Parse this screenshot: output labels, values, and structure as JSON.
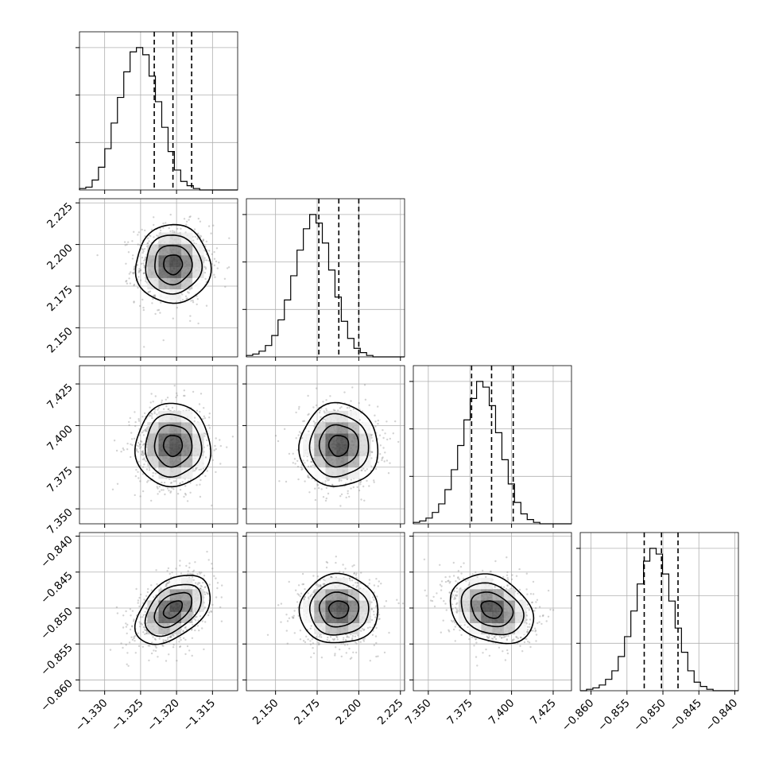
{
  "chart_data": {
    "type": "corner",
    "parameters": [
      {
        "range": [
          -1.3335,
          -1.3115
        ],
        "ticks": [
          -1.33,
          -1.325,
          -1.32,
          -1.315
        ],
        "tick_labels": [
          "−1.330",
          "−1.325",
          "−1.320",
          "−1.315"
        ],
        "mean": -1.3205,
        "sd": 0.0026,
        "quantiles": [
          -1.3231,
          -1.3205,
          -1.3179
        ],
        "hist": {
          "start": -1.3335,
          "step": 0.00088,
          "counts": [
            1,
            2,
            7,
            16,
            29,
            47,
            65,
            83,
            97,
            100,
            95,
            80,
            62,
            44,
            27,
            14,
            6,
            3,
            1,
            0,
            0,
            0,
            0,
            0,
            0
          ]
        }
      },
      {
        "range": [
          2.1325,
          2.2275
        ],
        "ticks": [
          2.15,
          2.175,
          2.2,
          2.225
        ],
        "tick_labels": [
          "2.150",
          "2.175",
          "2.200",
          "2.225"
        ],
        "mean": 2.188,
        "sd": 0.0118,
        "quantiles": [
          2.176,
          2.188,
          2.2
        ],
        "hist": {
          "start": 2.1325,
          "step": 0.0038,
          "counts": [
            1,
            2,
            4,
            8,
            15,
            26,
            40,
            57,
            75,
            90,
            100,
            94,
            80,
            61,
            42,
            25,
            13,
            6,
            3,
            1,
            0,
            0,
            0,
            0,
            0
          ]
        }
      },
      {
        "range": [
          7.341,
          7.436
        ],
        "ticks": [
          7.35,
          7.375,
          7.4,
          7.425
        ],
        "tick_labels": [
          "7.350",
          "7.375",
          "7.400",
          "7.425"
        ],
        "mean": 7.388,
        "sd": 0.0125,
        "quantiles": [
          7.376,
          7.388,
          7.401
        ],
        "hist": {
          "start": 7.341,
          "step": 0.0038,
          "counts": [
            1,
            2,
            4,
            8,
            14,
            24,
            38,
            55,
            73,
            88,
            100,
            96,
            83,
            64,
            45,
            28,
            15,
            7,
            3,
            1,
            0,
            0,
            0,
            0,
            0
          ]
        }
      },
      {
        "range": [
          -0.8615,
          -0.8395
        ],
        "ticks": [
          -0.86,
          -0.855,
          -0.85,
          -0.845,
          -0.84
        ],
        "tick_labels": [
          "−0.860",
          "−0.855",
          "−0.850",
          "−0.845",
          "−0.840"
        ],
        "mean": -0.8502,
        "sd": 0.0024,
        "quantiles": [
          -0.8526,
          -0.8502,
          -0.8479
        ],
        "hist": {
          "start": -0.8615,
          "step": 0.00088,
          "counts": [
            0,
            1,
            2,
            4,
            8,
            14,
            24,
            38,
            56,
            75,
            91,
            100,
            96,
            82,
            63,
            44,
            27,
            14,
            6,
            3,
            1,
            0,
            0,
            0,
            0
          ]
        }
      }
    ],
    "correlations": {
      "1-0": 0.0,
      "2-0": 0.0,
      "2-1": 0.0,
      "3-0": 0.45,
      "3-1": 0.0,
      "3-2": -0.25
    },
    "density_levels": [
      0.118,
      0.393,
      0.675,
      0.865
    ],
    "grid": true
  }
}
